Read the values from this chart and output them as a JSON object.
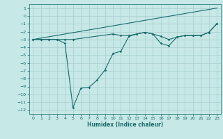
{
  "xlabel": "Humidex (Indice chaleur)",
  "background_color": "#c6e8e6",
  "grid_color": "#a8cece",
  "line_color": "#1a6b6b",
  "xlim": [
    -0.5,
    23.5
  ],
  "ylim": [
    -12.5,
    1.5
  ],
  "xticks": [
    0,
    1,
    2,
    3,
    4,
    5,
    6,
    7,
    8,
    9,
    10,
    11,
    12,
    13,
    14,
    15,
    16,
    17,
    18,
    19,
    20,
    21,
    22,
    23
  ],
  "yticks": [
    1,
    0,
    -1,
    -2,
    -3,
    -4,
    -5,
    -6,
    -7,
    -8,
    -9,
    -10,
    -11,
    -12
  ],
  "series1_x": [
    0,
    1,
    2,
    3,
    4,
    5,
    10,
    11,
    12,
    13,
    14,
    15,
    16,
    17,
    18,
    19,
    20,
    21,
    22,
    23
  ],
  "series1_y": [
    -3,
    -3,
    -3,
    -3,
    -3,
    -3,
    -2.3,
    -2.5,
    -2.5,
    -2.3,
    -2.1,
    -2.3,
    -2.6,
    -3.0,
    -2.7,
    -2.5,
    -2.5,
    -2.5,
    -2.1,
    -1.0
  ],
  "series2_x": [
    0,
    1,
    2,
    3,
    4,
    5,
    6,
    7,
    8,
    9,
    10,
    11,
    12,
    13,
    14,
    15,
    16,
    17,
    18,
    19,
    20,
    21,
    22,
    23
  ],
  "series2_y": [
    -3,
    -3,
    -3,
    -3,
    -3.5,
    -11.7,
    -9.2,
    -9.1,
    -8.2,
    -6.9,
    -4.8,
    -4.5,
    -2.6,
    -2.3,
    -2.1,
    -2.3,
    -3.5,
    -3.8,
    -2.7,
    -2.5,
    -2.5,
    -2.5,
    -2.1,
    -1.0
  ],
  "series3_x": [
    0,
    23
  ],
  "series3_y": [
    -3,
    1
  ]
}
